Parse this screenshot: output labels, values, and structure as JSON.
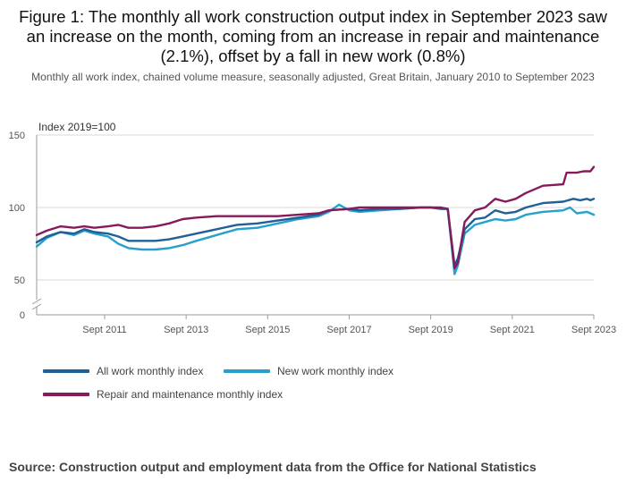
{
  "title": "Figure 1: The monthly all work construction output index in September 2023 saw an increase on the month, coming from an increase in repair and maintenance (2.1%), offset by a fall in new work (0.8%)",
  "subtitle": "Monthly all work index, chained volume measure, seasonally adjusted, Great Britain, January 2010 to September 2023",
  "source": "Source: Construction output and employment data from the Office for National Statistics",
  "chart_data": {
    "type": "line",
    "ylabel": "Index 2019=100",
    "ylim": [
      0,
      150
    ],
    "yticks": [
      "0",
      "50",
      "100",
      "150"
    ],
    "x_start": "2010-01",
    "x_end": "2023-09",
    "xticks": [
      {
        "label": "Sept 2011",
        "date": "2011-09"
      },
      {
        "label": "Sept 2013",
        "date": "2013-09"
      },
      {
        "label": "Sept 2015",
        "date": "2015-09"
      },
      {
        "label": "Sept 2017",
        "date": "2017-09"
      },
      {
        "label": "Sept 2019",
        "date": "2019-09"
      },
      {
        "label": "Sept 2021",
        "date": "2021-09"
      },
      {
        "label": "Sept 2023",
        "date": "2023-09"
      }
    ],
    "axis_break": true,
    "grid": "horizontal",
    "legend": "bottom",
    "series": [
      {
        "name": "All work monthly index",
        "color": "#206095",
        "points": [
          [
            "2010-01",
            76
          ],
          [
            "2010-04",
            80
          ],
          [
            "2010-08",
            83
          ],
          [
            "2010-12",
            82
          ],
          [
            "2011-03",
            85
          ],
          [
            "2011-06",
            83
          ],
          [
            "2011-10",
            82
          ],
          [
            "2012-01",
            80
          ],
          [
            "2012-04",
            77
          ],
          [
            "2012-08",
            77
          ],
          [
            "2012-12",
            77
          ],
          [
            "2013-04",
            78
          ],
          [
            "2013-08",
            80
          ],
          [
            "2013-12",
            82
          ],
          [
            "2014-06",
            85
          ],
          [
            "2014-12",
            88
          ],
          [
            "2015-06",
            89
          ],
          [
            "2015-12",
            91
          ],
          [
            "2016-06",
            93
          ],
          [
            "2016-12",
            95
          ],
          [
            "2017-03",
            98
          ],
          [
            "2017-09",
            99
          ],
          [
            "2017-12",
            98
          ],
          [
            "2018-06",
            99
          ],
          [
            "2018-12",
            99
          ],
          [
            "2019-06",
            100
          ],
          [
            "2019-09",
            100
          ],
          [
            "2019-12",
            99
          ],
          [
            "2020-02",
            99
          ],
          [
            "2020-04",
            60
          ],
          [
            "2020-05",
            65
          ],
          [
            "2020-07",
            85
          ],
          [
            "2020-10",
            92
          ],
          [
            "2021-01",
            93
          ],
          [
            "2021-04",
            98
          ],
          [
            "2021-07",
            96
          ],
          [
            "2021-10",
            97
          ],
          [
            "2022-01",
            100
          ],
          [
            "2022-06",
            103
          ],
          [
            "2022-12",
            104
          ],
          [
            "2023-03",
            106
          ],
          [
            "2023-05",
            105
          ],
          [
            "2023-07",
            106
          ],
          [
            "2023-08",
            105
          ],
          [
            "2023-09",
            106
          ]
        ]
      },
      {
        "name": "New work monthly index",
        "color": "#27a0cc",
        "points": [
          [
            "2010-01",
            73
          ],
          [
            "2010-04",
            79
          ],
          [
            "2010-08",
            83
          ],
          [
            "2010-12",
            81
          ],
          [
            "2011-03",
            84
          ],
          [
            "2011-06",
            82
          ],
          [
            "2011-10",
            80
          ],
          [
            "2012-01",
            75
          ],
          [
            "2012-04",
            72
          ],
          [
            "2012-08",
            71
          ],
          [
            "2012-12",
            71
          ],
          [
            "2013-04",
            72
          ],
          [
            "2013-08",
            74
          ],
          [
            "2013-12",
            77
          ],
          [
            "2014-06",
            81
          ],
          [
            "2014-12",
            85
          ],
          [
            "2015-06",
            86
          ],
          [
            "2015-12",
            89
          ],
          [
            "2016-06",
            92
          ],
          [
            "2016-12",
            94
          ],
          [
            "2017-03",
            97
          ],
          [
            "2017-06",
            102
          ],
          [
            "2017-09",
            98
          ],
          [
            "2017-12",
            97
          ],
          [
            "2018-06",
            98
          ],
          [
            "2018-12",
            99
          ],
          [
            "2019-06",
            100
          ],
          [
            "2019-09",
            100
          ],
          [
            "2019-12",
            99
          ],
          [
            "2020-02",
            99
          ],
          [
            "2020-04",
            54
          ],
          [
            "2020-05",
            60
          ],
          [
            "2020-07",
            82
          ],
          [
            "2020-10",
            88
          ],
          [
            "2021-01",
            90
          ],
          [
            "2021-04",
            92
          ],
          [
            "2021-07",
            91
          ],
          [
            "2021-10",
            92
          ],
          [
            "2022-01",
            95
          ],
          [
            "2022-06",
            97
          ],
          [
            "2022-12",
            98
          ],
          [
            "2023-02",
            100
          ],
          [
            "2023-04",
            96
          ],
          [
            "2023-07",
            97
          ],
          [
            "2023-09",
            95
          ]
        ]
      },
      {
        "name": "Repair and maintenance monthly index",
        "color": "#871a5b",
        "points": [
          [
            "2010-01",
            81
          ],
          [
            "2010-04",
            84
          ],
          [
            "2010-08",
            87
          ],
          [
            "2010-12",
            86
          ],
          [
            "2011-03",
            87
          ],
          [
            "2011-06",
            86
          ],
          [
            "2011-10",
            87
          ],
          [
            "2012-01",
            88
          ],
          [
            "2012-04",
            86
          ],
          [
            "2012-08",
            86
          ],
          [
            "2012-12",
            87
          ],
          [
            "2013-04",
            89
          ],
          [
            "2013-08",
            92
          ],
          [
            "2013-12",
            93
          ],
          [
            "2014-06",
            94
          ],
          [
            "2014-12",
            94
          ],
          [
            "2015-06",
            94
          ],
          [
            "2015-12",
            94
          ],
          [
            "2016-06",
            95
          ],
          [
            "2016-12",
            96
          ],
          [
            "2017-03",
            98
          ],
          [
            "2017-09",
            99
          ],
          [
            "2017-12",
            100
          ],
          [
            "2018-06",
            100
          ],
          [
            "2018-12",
            100
          ],
          [
            "2019-06",
            100
          ],
          [
            "2019-09",
            100
          ],
          [
            "2019-12",
            100
          ],
          [
            "2020-02",
            99
          ],
          [
            "2020-04",
            58
          ],
          [
            "2020-05",
            62
          ],
          [
            "2020-07",
            90
          ],
          [
            "2020-10",
            98
          ],
          [
            "2021-01",
            100
          ],
          [
            "2021-04",
            106
          ],
          [
            "2021-07",
            104
          ],
          [
            "2021-10",
            106
          ],
          [
            "2022-01",
            110
          ],
          [
            "2022-06",
            115
          ],
          [
            "2022-12",
            116
          ],
          [
            "2023-01",
            124
          ],
          [
            "2023-04",
            124
          ],
          [
            "2023-06",
            125
          ],
          [
            "2023-08",
            125
          ],
          [
            "2023-09",
            128
          ]
        ]
      }
    ]
  }
}
